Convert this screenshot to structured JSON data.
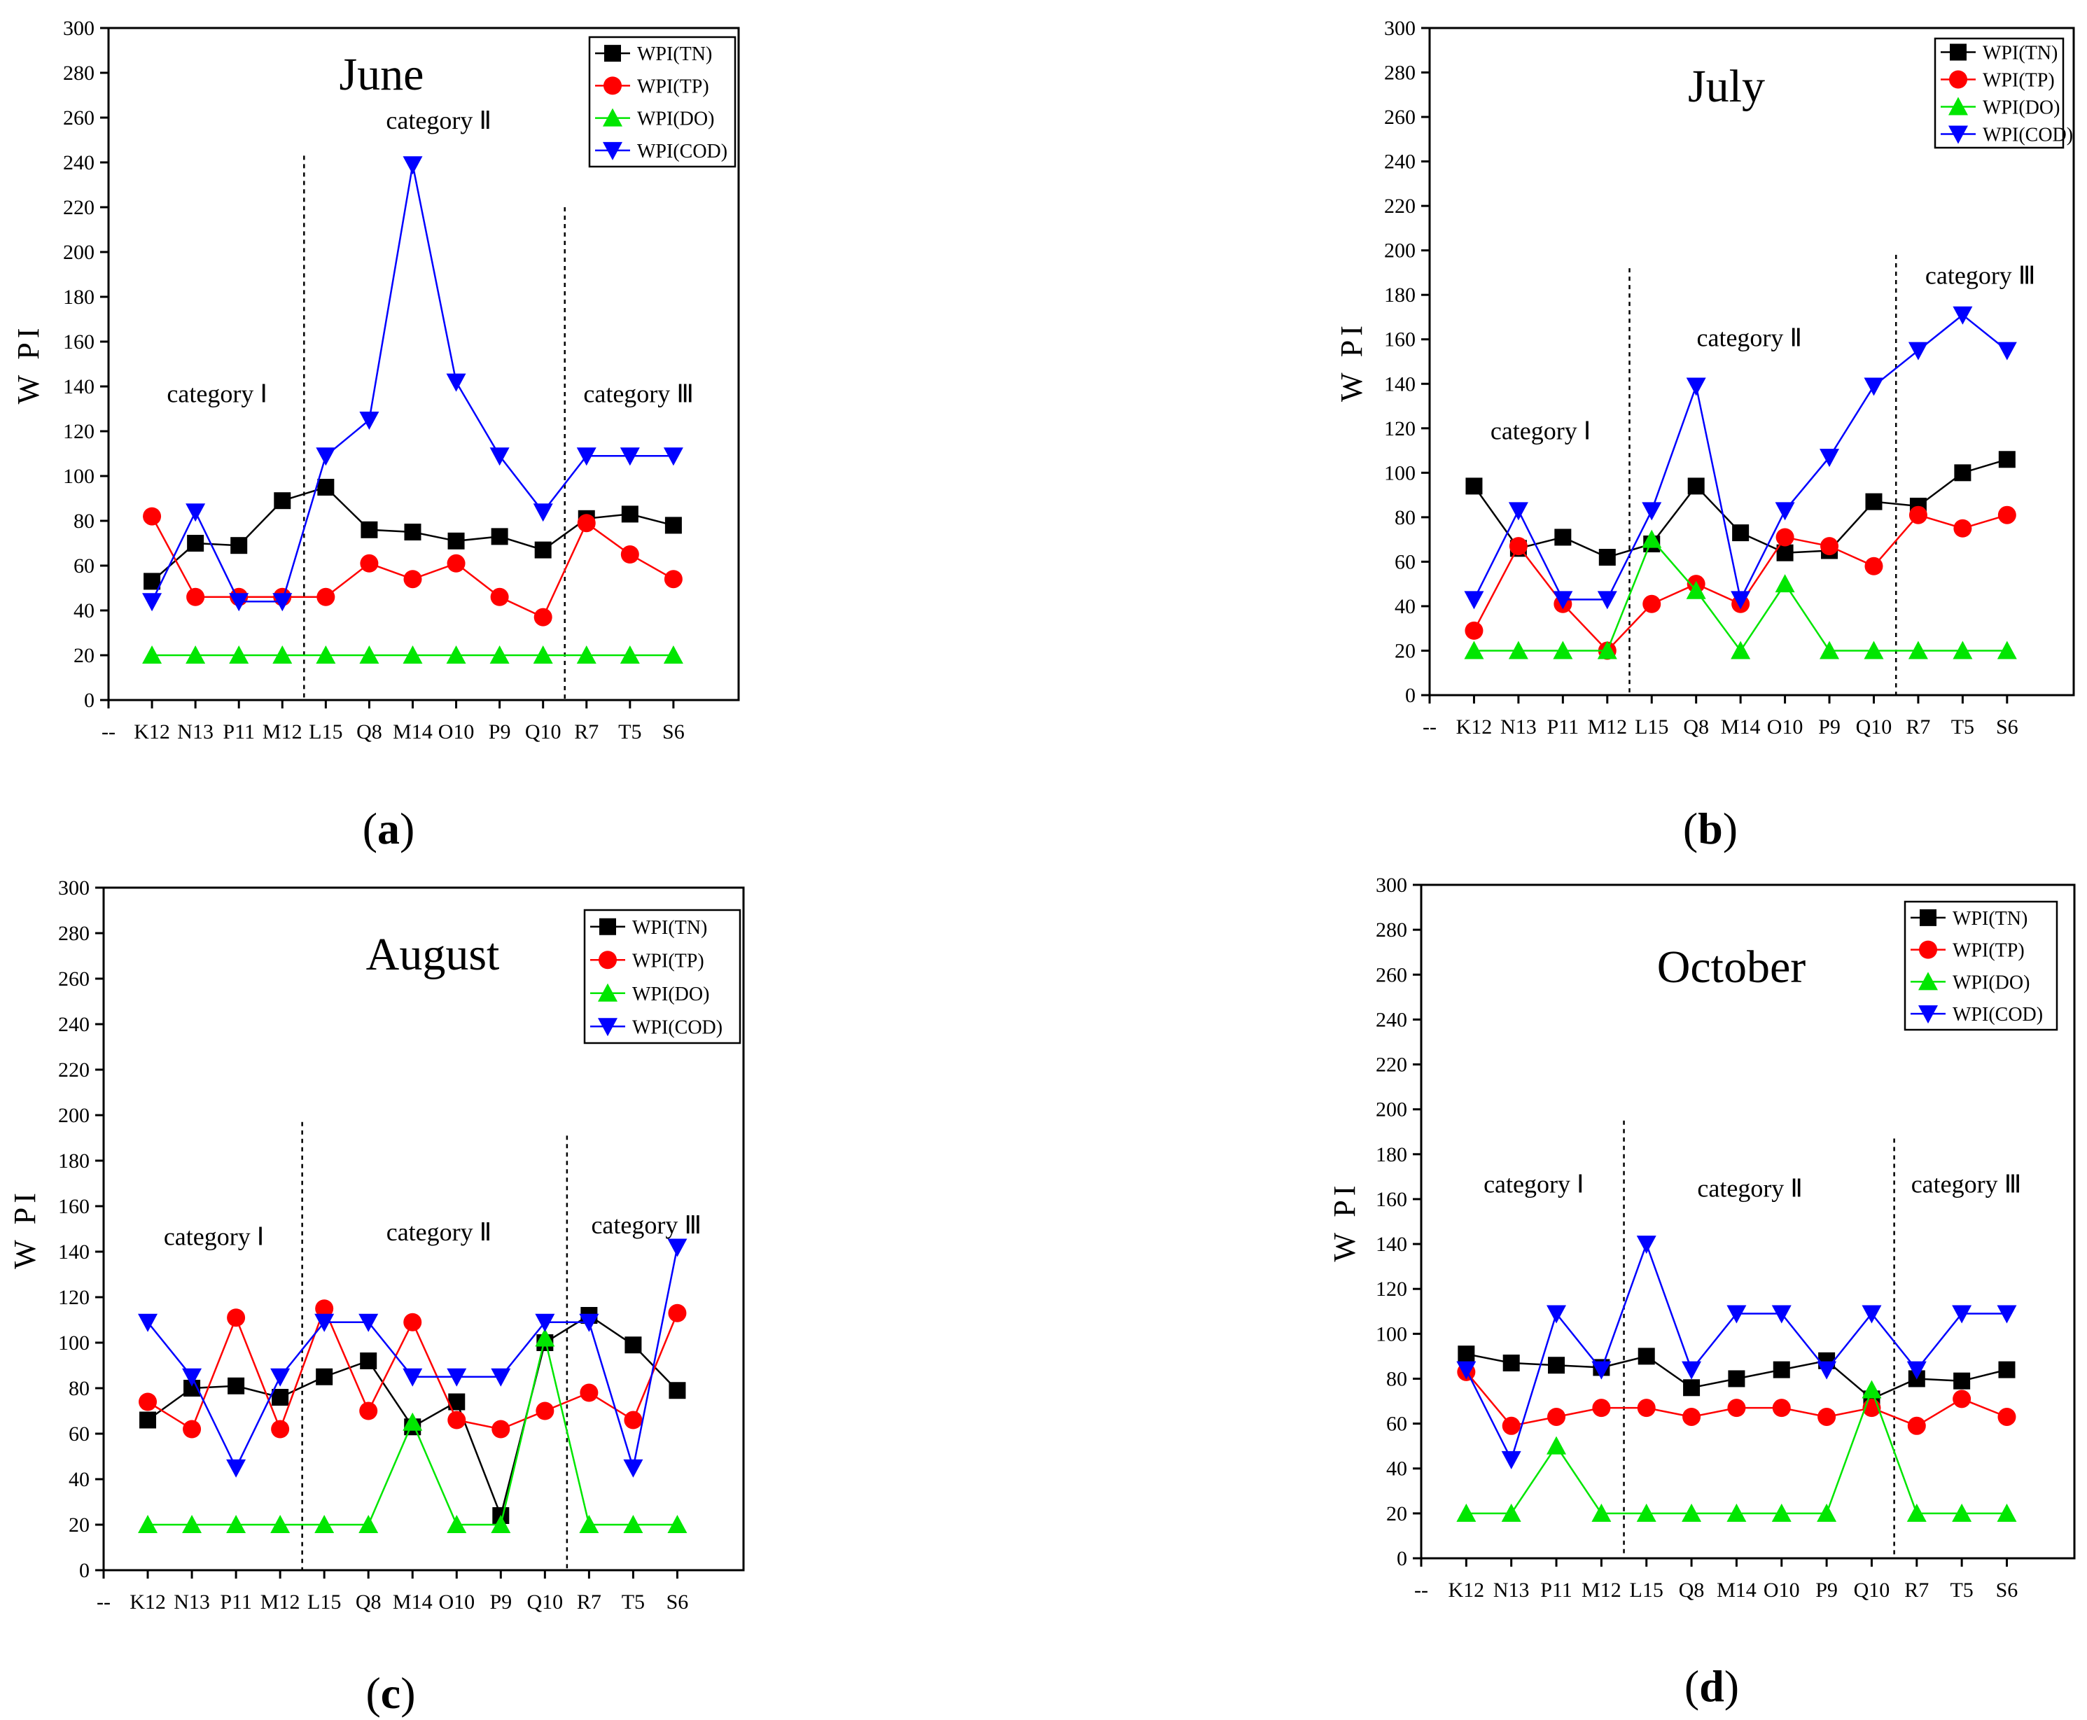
{
  "figure": {
    "panels": [
      "(a)",
      "(b)",
      "(c)",
      "(d)"
    ]
  },
  "colors": {
    "WPI(TN)": "#000000",
    "WPI(TP)": "#ff0000",
    "WPI(DO)": "#00e600",
    "WPI(COD)": "#0000ff"
  },
  "chart_data": [
    {
      "type": "line",
      "panel": "(a)",
      "title": "June",
      "ylabel": "W PI",
      "ylim": [
        0,
        300
      ],
      "yticks": [
        0,
        20,
        40,
        60,
        80,
        100,
        120,
        140,
        160,
        180,
        200,
        220,
        240,
        260,
        280,
        300
      ],
      "first_tick": "--",
      "categories": [
        "K12",
        "N13",
        "P11",
        "M12",
        "L15",
        "Q8",
        "M14",
        "O10",
        "P9",
        "Q10",
        "R7",
        "T5",
        "S6"
      ],
      "series": [
        {
          "name": "WPI(TN)",
          "marker": "square",
          "values": [
            53,
            70,
            69,
            89,
            95,
            76,
            75,
            71,
            73,
            67,
            81,
            83,
            78
          ]
        },
        {
          "name": "WPI(TP)",
          "marker": "circle",
          "values": [
            82,
            46,
            46,
            46,
            46,
            61,
            54,
            61,
            46,
            37,
            79,
            65,
            54
          ]
        },
        {
          "name": "WPI(DO)",
          "marker": "triangle-up",
          "values": [
            20,
            20,
            20,
            20,
            20,
            20,
            20,
            20,
            20,
            20,
            20,
            20,
            20
          ]
        },
        {
          "name": "WPI(COD)",
          "marker": "triangle-down",
          "values": [
            44,
            84,
            44,
            44,
            109,
            125,
            239,
            142,
            109,
            84,
            109,
            109,
            109
          ]
        }
      ],
      "dividers": [
        {
          "after_index": 3.5,
          "top": 243
        },
        {
          "after_index": 9.5,
          "top": 220
        }
      ],
      "category_labels": [
        {
          "text": "category   Ⅰ",
          "x": 1.5,
          "y": 133
        },
        {
          "text": "category Ⅱ",
          "x": 6.6,
          "y": 255
        },
        {
          "text": "category Ⅲ",
          "x": 11.2,
          "y": 133
        }
      ]
    },
    {
      "type": "line",
      "panel": "(b)",
      "title": "July",
      "ylabel": "W PI",
      "ylim": [
        0,
        300
      ],
      "yticks": [
        0,
        20,
        40,
        60,
        80,
        100,
        120,
        140,
        160,
        180,
        200,
        220,
        240,
        260,
        280,
        300
      ],
      "first_tick": "--",
      "categories": [
        "K12",
        "N13",
        "P11",
        "M12",
        "L15",
        "Q8",
        "M14",
        "O10",
        "P9",
        "Q10",
        "R7",
        "T5",
        "S6"
      ],
      "series": [
        {
          "name": "WPI(TN)",
          "marker": "square",
          "values": [
            94,
            66,
            71,
            62,
            68,
            94,
            73,
            64,
            65,
            87,
            85,
            100,
            106
          ]
        },
        {
          "name": "WPI(TP)",
          "marker": "circle",
          "values": [
            29,
            67,
            41,
            20,
            41,
            50,
            41,
            71,
            67,
            58,
            81,
            75,
            81
          ]
        },
        {
          "name": "WPI(DO)",
          "marker": "triangle-up",
          "values": [
            20,
            20,
            20,
            20,
            70,
            47,
            20,
            50,
            20,
            20,
            20,
            20,
            20
          ]
        },
        {
          "name": "WPI(COD)",
          "marker": "triangle-down",
          "values": [
            43,
            83,
            43,
            43,
            83,
            139,
            43,
            83,
            107,
            139,
            155,
            171,
            155
          ]
        }
      ],
      "dividers": [
        {
          "after_index": 3.5,
          "top": 192
        },
        {
          "after_index": 9.5,
          "top": 198
        }
      ],
      "category_labels": [
        {
          "text": "category   Ⅰ",
          "x": 1.5,
          "y": 115
        },
        {
          "text": "category Ⅱ",
          "x": 6.2,
          "y": 157
        },
        {
          "text": "category Ⅲ",
          "x": 11.4,
          "y": 185
        }
      ]
    },
    {
      "type": "line",
      "panel": "(c)",
      "title": "August",
      "ylabel": "W PI",
      "ylim": [
        0,
        300
      ],
      "yticks": [
        0,
        20,
        40,
        60,
        80,
        100,
        120,
        140,
        160,
        180,
        200,
        220,
        240,
        260,
        280,
        300
      ],
      "first_tick": "--",
      "categories": [
        "K12",
        "N13",
        "P11",
        "M12",
        "L15",
        "Q8",
        "M14",
        "O10",
        "P9",
        "Q10",
        "R7",
        "T5",
        "S6"
      ],
      "series": [
        {
          "name": "WPI(TN)",
          "marker": "square",
          "values": [
            66,
            80,
            81,
            76,
            85,
            92,
            63,
            74,
            24,
            100,
            112,
            99,
            79
          ]
        },
        {
          "name": "WPI(TP)",
          "marker": "circle",
          "values": [
            74,
            62,
            111,
            62,
            115,
            70,
            109,
            66,
            62,
            70,
            78,
            66,
            113
          ]
        },
        {
          "name": "WPI(DO)",
          "marker": "triangle-up",
          "values": [
            20,
            20,
            20,
            20,
            20,
            20,
            65,
            20,
            20,
            102,
            20,
            20,
            20
          ]
        },
        {
          "name": "WPI(COD)",
          "marker": "triangle-down",
          "values": [
            109,
            85,
            45,
            85,
            109,
            109,
            85,
            85,
            85,
            109,
            109,
            45,
            142
          ]
        }
      ],
      "dividers": [
        {
          "after_index": 3.5,
          "top": 197
        },
        {
          "after_index": 9.5,
          "top": 191
        }
      ],
      "category_labels": [
        {
          "text": "category   Ⅰ",
          "x": 1.5,
          "y": 143
        },
        {
          "text": "category Ⅱ",
          "x": 6.6,
          "y": 145
        },
        {
          "text": "category Ⅲ",
          "x": 11.3,
          "y": 148
        }
      ]
    },
    {
      "type": "line",
      "panel": "(d)",
      "title": "October",
      "ylabel": "W PI",
      "ylim": [
        0,
        300
      ],
      "yticks": [
        0,
        20,
        40,
        60,
        80,
        100,
        120,
        140,
        160,
        180,
        200,
        220,
        240,
        260,
        280,
        300
      ],
      "first_tick": "--",
      "categories": [
        "K12",
        "N13",
        "P11",
        "M12",
        "L15",
        "Q8",
        "M14",
        "O10",
        "P9",
        "Q10",
        "R7",
        "T5",
        "S6"
      ],
      "series": [
        {
          "name": "WPI(TN)",
          "marker": "square",
          "values": [
            91,
            87,
            86,
            85,
            90,
            76,
            80,
            84,
            88,
            71,
            80,
            79,
            84
          ]
        },
        {
          "name": "WPI(TP)",
          "marker": "circle",
          "values": [
            83,
            59,
            63,
            67,
            67,
            63,
            67,
            67,
            63,
            67,
            59,
            71,
            63
          ]
        },
        {
          "name": "WPI(DO)",
          "marker": "triangle-up",
          "values": [
            20,
            20,
            50,
            20,
            20,
            20,
            20,
            20,
            20,
            75,
            20,
            20,
            20
          ]
        },
        {
          "name": "WPI(COD)",
          "marker": "triangle-down",
          "values": [
            84,
            44,
            109,
            84,
            140,
            84,
            109,
            109,
            84,
            109,
            84,
            109,
            109
          ]
        }
      ],
      "dividers": [
        {
          "after_index": 3.5,
          "top": 195
        },
        {
          "after_index": 9.5,
          "top": 187
        }
      ],
      "category_labels": [
        {
          "text": "category   Ⅰ",
          "x": 1.5,
          "y": 163
        },
        {
          "text": "category Ⅱ",
          "x": 6.3,
          "y": 161
        },
        {
          "text": "category Ⅲ",
          "x": 11.1,
          "y": 163
        }
      ]
    }
  ]
}
